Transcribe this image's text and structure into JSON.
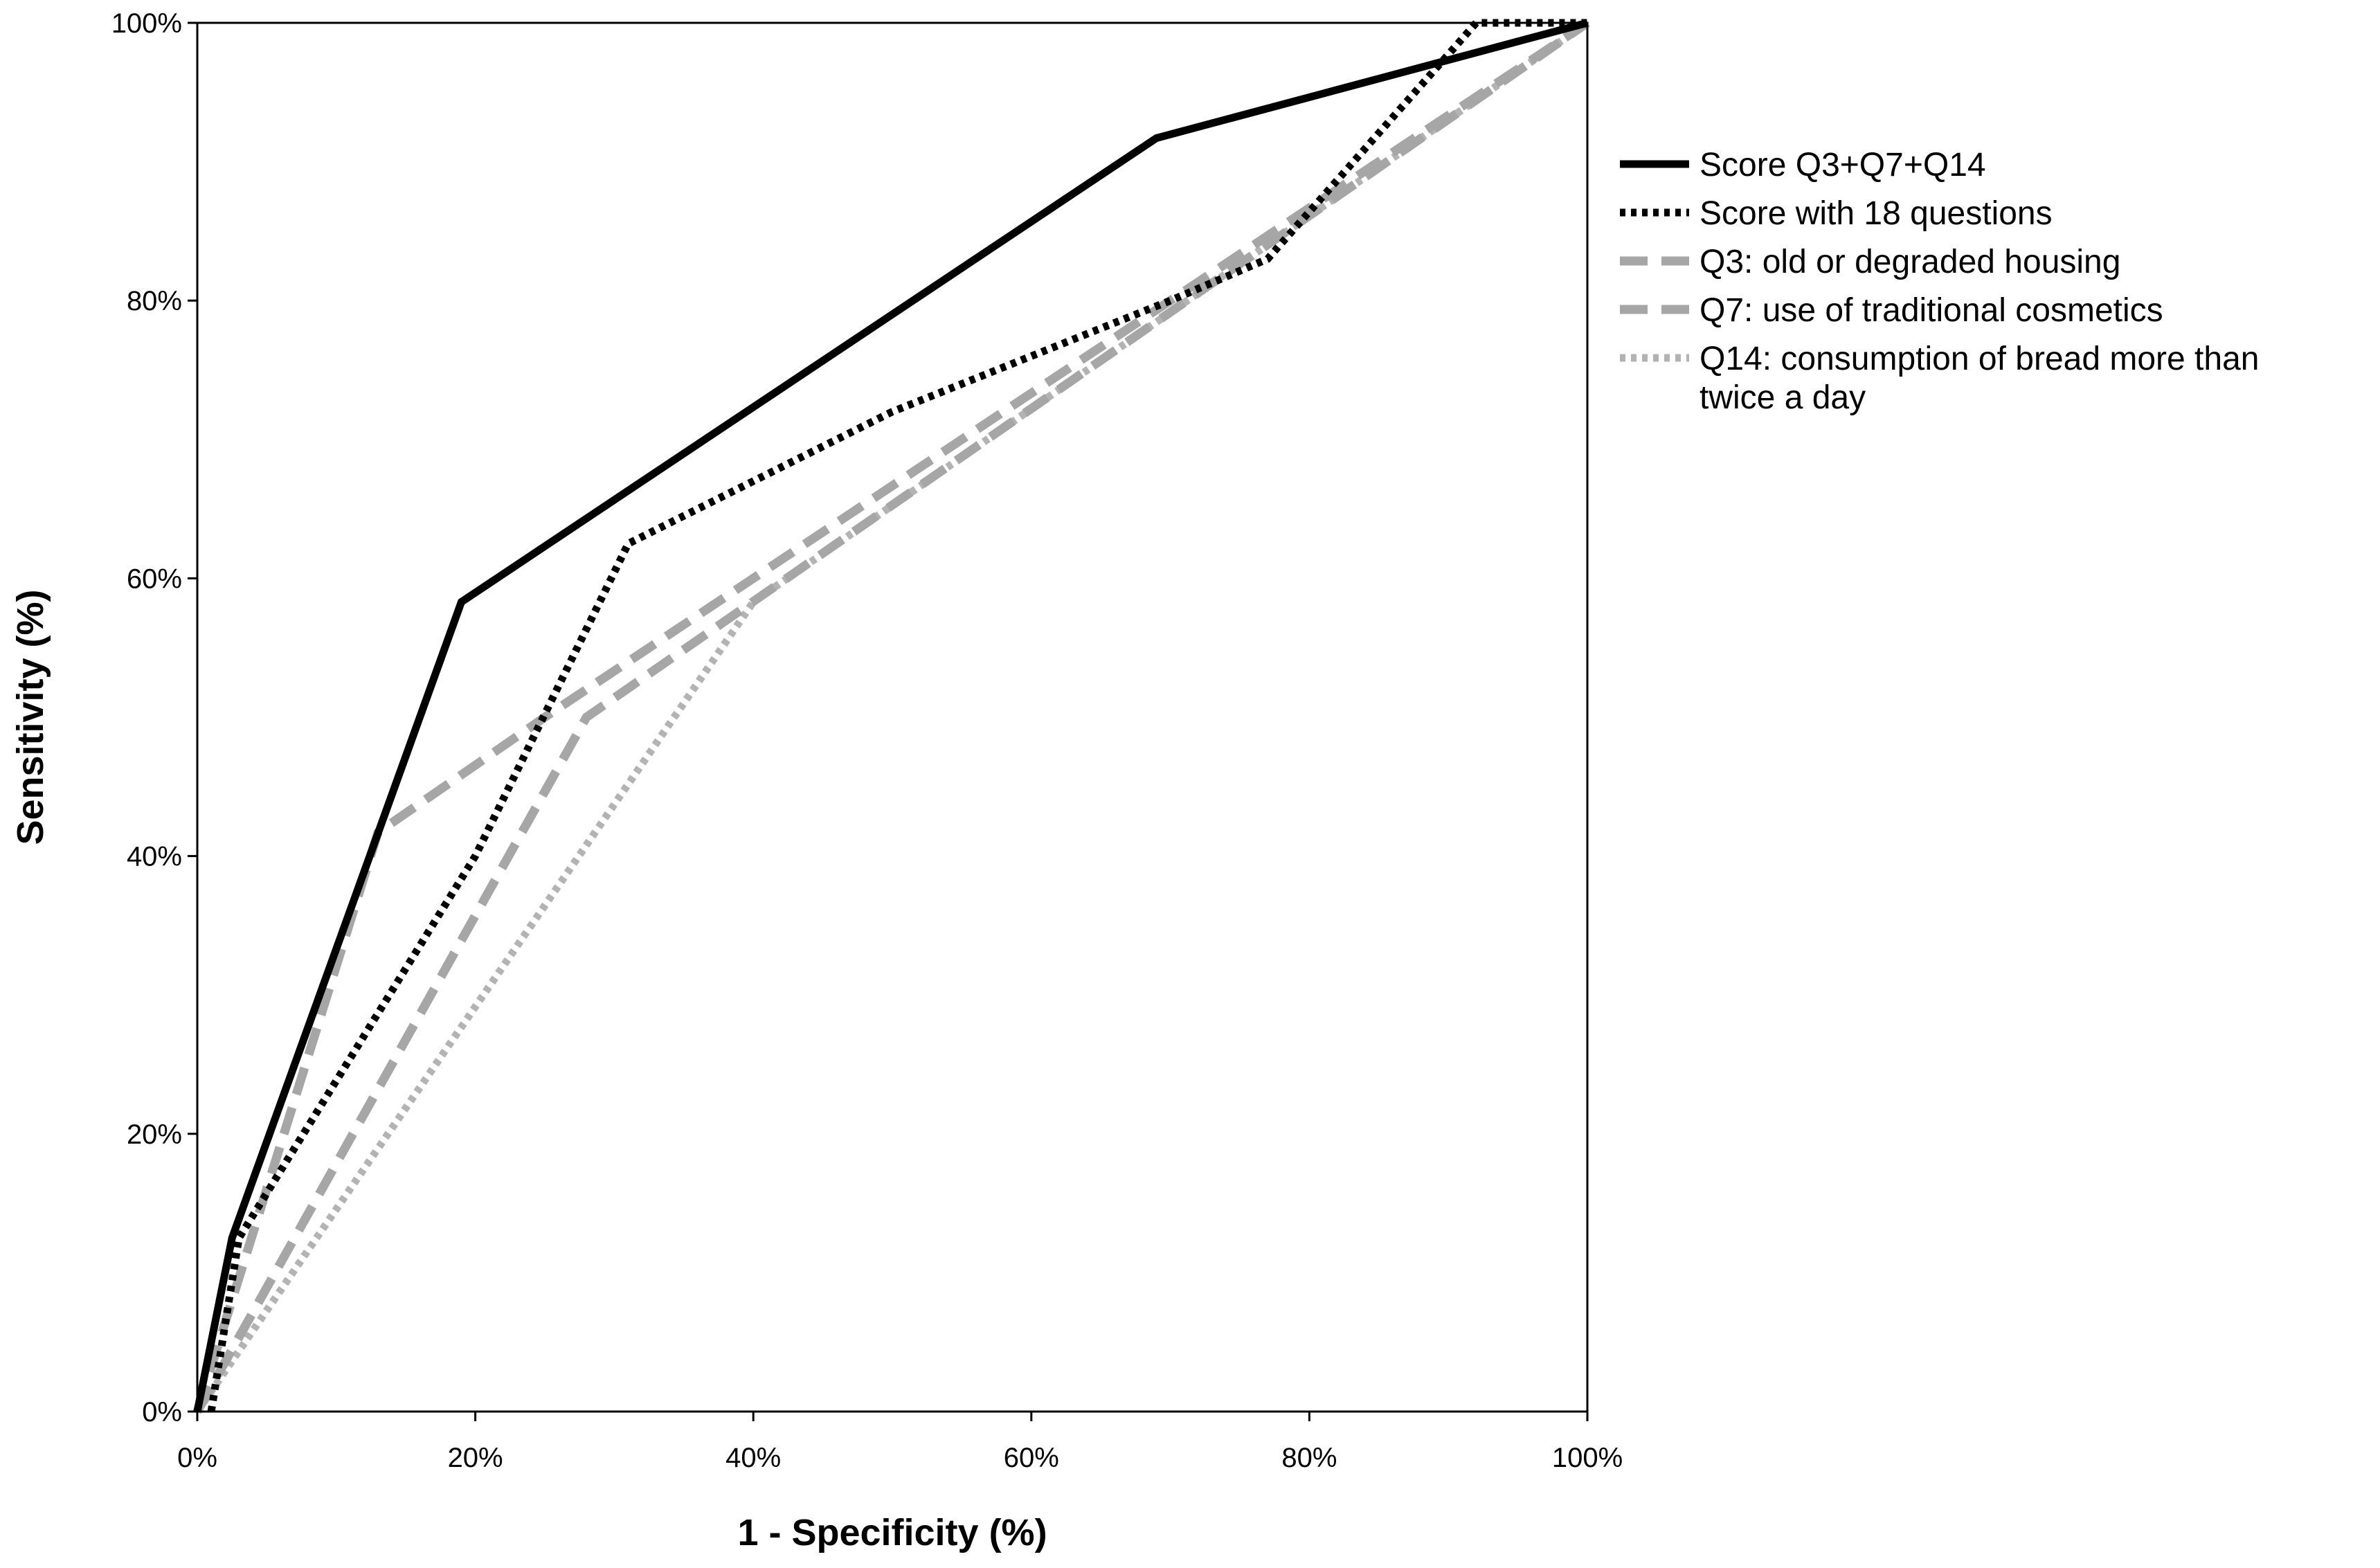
{
  "chart_data": {
    "type": "line",
    "title": "",
    "xlabel": "1 - Specificity (%)",
    "ylabel": "Sensitivity (%)",
    "xlim": [
      0,
      100
    ],
    "ylim": [
      0,
      100
    ],
    "xticks": [
      "0%",
      "20%",
      "40%",
      "60%",
      "80%",
      "100%"
    ],
    "yticks": [
      "0%",
      "20%",
      "40%",
      "60%",
      "80%",
      "100%"
    ],
    "grid": false,
    "legend_position": "right",
    "series": [
      {
        "name": "Score Q3+Q7+Q14",
        "legend_lines": [
          "Score Q3+Q7+Q14"
        ],
        "style": "solid",
        "color": "#000000",
        "x": [
          0,
          2.5,
          19,
          69,
          100
        ],
        "y": [
          0,
          12.5,
          58.3,
          91.7,
          100
        ]
      },
      {
        "name": "Score with 18 questions",
        "legend_lines": [
          "Score with 18 questions"
        ],
        "style": "dotted",
        "color": "#000000",
        "x": [
          1,
          3,
          20,
          31,
          50,
          70,
          77,
          92,
          100
        ],
        "y": [
          0,
          12.5,
          40,
          62.5,
          72,
          80,
          83,
          100,
          100
        ]
      },
      {
        "name": "Q3: old or degraded housing",
        "legend_lines": [
          "Q3: old or degraded housing"
        ],
        "style": "dashed",
        "color": "#a6a6a6",
        "x": [
          0,
          13,
          25,
          100
        ],
        "y": [
          0,
          41.7,
          50,
          100
        ]
      },
      {
        "name": "Q7: use of traditional cosmetics",
        "legend_lines": [
          "Q7: use of traditional cosmetics"
        ],
        "style": "dashed",
        "color": "#a6a6a6",
        "x": [
          0,
          28,
          100
        ],
        "y": [
          0,
          50,
          100
        ]
      },
      {
        "name": "Q14: consumption of bread more than twice a day",
        "legend_lines": [
          "Q14: consumption of bread more than",
          "twice a day"
        ],
        "style": "dotted",
        "color": "#b3b3b3",
        "x": [
          0,
          40,
          100
        ],
        "y": [
          0,
          58.3,
          100
        ]
      }
    ]
  }
}
